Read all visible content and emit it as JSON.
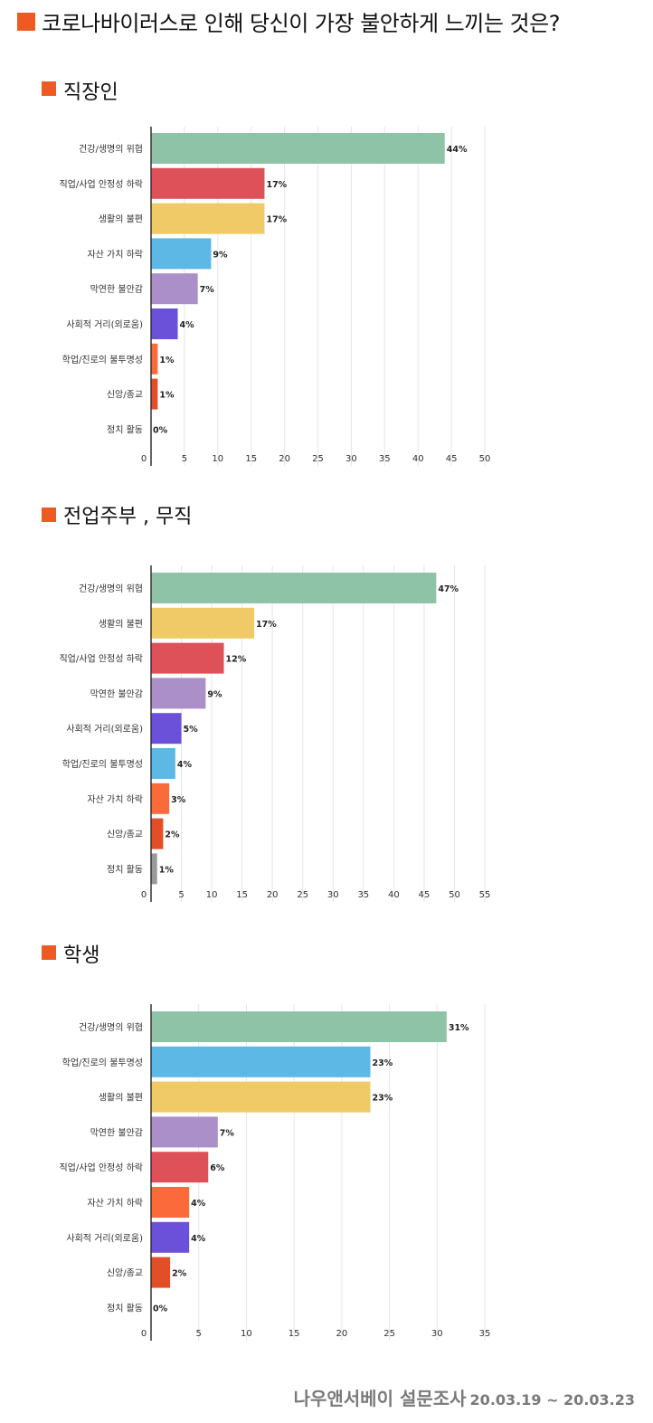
{
  "title": "코로나바이러스로 인해 당신이 가장 불안하게 느끼는 것은?",
  "colors": {
    "accent": "#ee5a24",
    "health": "#8fc3a7",
    "job": "#de5158",
    "life": "#efca66",
    "asset": "#5db8e6",
    "vague": "#ab8fc8",
    "social": "#6b51d9",
    "study": "#5db8e6",
    "religion": "#e24e27",
    "politics_gray": "#999999",
    "orange": "#fa6a3a"
  },
  "chart_data": [
    {
      "type": "bar",
      "orientation": "horizontal",
      "title": "직장인",
      "categories": [
        "건강/생명의 위협",
        "직업/사업 안정성 하락",
        "생활의 불편",
        "자산 가치 하락",
        "막연한 불안감",
        "사회적 거리(외로움)",
        "학업/진로의 불투명성",
        "신앙/종교",
        "정치 활동"
      ],
      "values": [
        44,
        17,
        17,
        9,
        7,
        4,
        1,
        1,
        0
      ],
      "value_labels": [
        "44%",
        "17%",
        "17%",
        "9%",
        "7%",
        "4%",
        "1%",
        "1%",
        "0%"
      ],
      "bar_colors": [
        "#8fc3a7",
        "#de5158",
        "#efca66",
        "#5db8e6",
        "#ab8fc8",
        "#6b51d9",
        "#fa6a3a",
        "#e24e27",
        "#fa6a3a"
      ],
      "xlim": [
        0,
        50
      ],
      "xticks": [
        "0",
        "5",
        "10",
        "15",
        "20",
        "25",
        "30",
        "35",
        "40",
        "45",
        "50"
      ],
      "grid": true
    },
    {
      "type": "bar",
      "orientation": "horizontal",
      "title": "전업주부 , 무직",
      "categories": [
        "건강/생명의 위협",
        "생활의 불편",
        "직업/사업 안정성 하락",
        "막연한 불안감",
        "사회적 거리(외로움)",
        "학업/진로의 불투명성",
        "자산 가치 하락",
        "신앙/종교",
        "정치 활동"
      ],
      "values": [
        47,
        17,
        12,
        9,
        5,
        4,
        3,
        2,
        1
      ],
      "value_labels": [
        "47%",
        "17%",
        "12%",
        "9%",
        "5%",
        "4%",
        "3%",
        "2%",
        "1%"
      ],
      "bar_colors": [
        "#8fc3a7",
        "#efca66",
        "#de5158",
        "#ab8fc8",
        "#6b51d9",
        "#5db8e6",
        "#fa6a3a",
        "#e24e27",
        "#999999"
      ],
      "xlim": [
        0,
        55
      ],
      "xticks": [
        "0",
        "5",
        "10",
        "15",
        "20",
        "25",
        "30",
        "35",
        "40",
        "45",
        "50",
        "55"
      ],
      "grid": true
    },
    {
      "type": "bar",
      "orientation": "horizontal",
      "title": "학생",
      "categories": [
        "건강/생명의 위협",
        "학업/진로의 불투명성",
        "생활의 불편",
        "막연한 불안감",
        "직업/사업 안정성 하락",
        "자산 가치 하락",
        "사회적 거리(외로움)",
        "신앙/종교",
        "정치 활동"
      ],
      "values": [
        31,
        23,
        23,
        7,
        6,
        4,
        4,
        2,
        0
      ],
      "value_labels": [
        "31%",
        "23%",
        "23%",
        "7%",
        "6%",
        "4%",
        "4%",
        "2%",
        "0%"
      ],
      "bar_colors": [
        "#8fc3a7",
        "#5db8e6",
        "#efca66",
        "#ab8fc8",
        "#de5158",
        "#fa6a3a",
        "#6b51d9",
        "#e24e27",
        "#fa6a3a"
      ],
      "xlim": [
        0,
        35
      ],
      "xticks": [
        "0",
        "5",
        "10",
        "15",
        "20",
        "25",
        "30",
        "35"
      ],
      "grid": true
    }
  ],
  "footer": {
    "source": "나우앤서베이 설문조사",
    "dates": "20.03.19 ~ 20.03.23"
  }
}
